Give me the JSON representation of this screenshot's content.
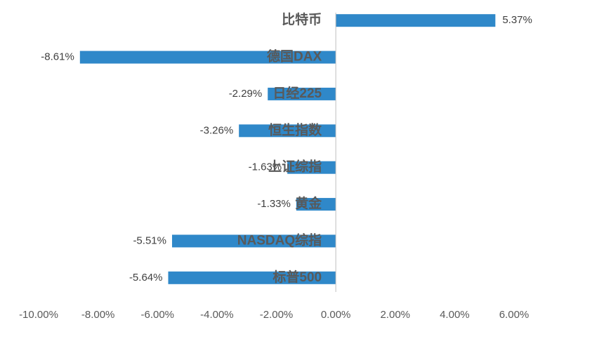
{
  "chart_data": {
    "type": "hbar",
    "categories": [
      "比特币",
      "德国DAX",
      "日经225",
      "恒生指数",
      "上证综指",
      "黄金",
      "NASDAQ综指",
      "标普500"
    ],
    "values": [
      5.37,
      -8.61,
      -2.29,
      -3.26,
      -1.63,
      -1.33,
      -5.51,
      -5.64
    ],
    "value_labels": [
      "5.37%",
      "-8.61%",
      "-2.29%",
      "-3.26%",
      "-1.63%",
      "-1.33%",
      "-5.51%",
      "-5.64%"
    ],
    "color": "#2f88c9",
    "xlim": [
      -10,
      6
    ],
    "xticks": [
      {
        "value": -10,
        "label": "-10.00%"
      },
      {
        "value": -8,
        "label": "-8.00%"
      },
      {
        "value": -6,
        "label": "-6.00%"
      },
      {
        "value": -4,
        "label": "-4.00%"
      },
      {
        "value": -2,
        "label": "-2.00%"
      },
      {
        "value": 0,
        "label": "0.00%"
      },
      {
        "value": 2,
        "label": "2.00%"
      },
      {
        "value": 4,
        "label": "4.00%"
      },
      {
        "value": 6,
        "label": "6.00%"
      }
    ],
    "grid": false
  }
}
